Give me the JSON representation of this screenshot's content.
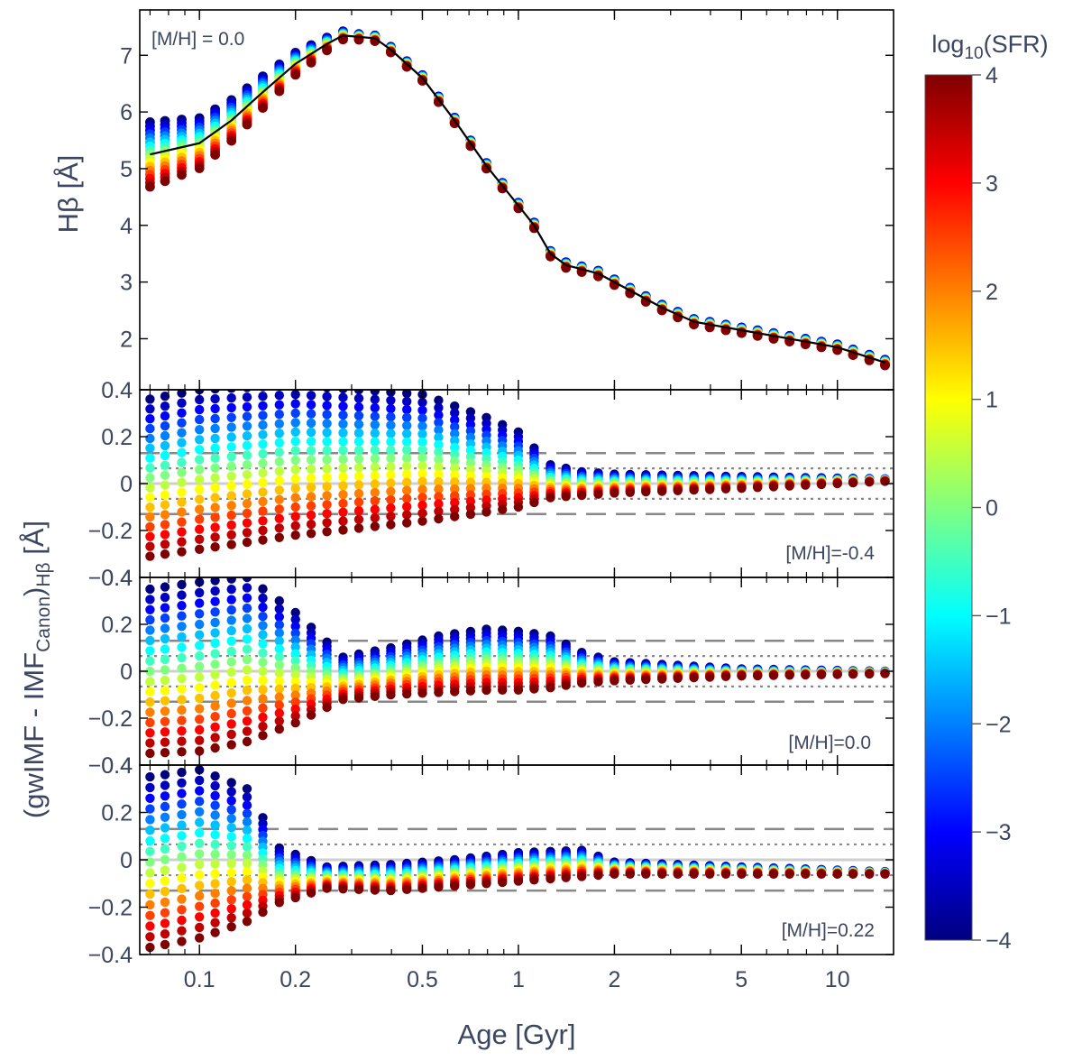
{
  "chart_data": {
    "type": "scatter",
    "x_axis": {
      "label": "Age [Gyr]",
      "scale": "log",
      "xlim": [
        0.065,
        15
      ],
      "tick_values": [
        0.1,
        0.2,
        0.5,
        1,
        2,
        5,
        10
      ],
      "tick_labels": [
        "0.1",
        "0.2",
        "0.5",
        "1",
        "2",
        "5",
        "10"
      ]
    },
    "shared_ylabel": {
      "main": "(gwIMF - IMF",
      "sub": "Canon",
      "after": ")",
      "sub2": "Hβ",
      "unit": "[Å]"
    },
    "colorbar": {
      "title_main": "log",
      "title_sub": "10",
      "title_rest": "(SFR)",
      "range": [
        -4,
        4
      ],
      "tick_values": [
        4,
        3,
        2,
        1,
        0,
        -1,
        -2,
        -3,
        -4
      ],
      "tick_labels": [
        "4",
        "3",
        "2",
        "1",
        "0",
        "−1",
        "−2",
        "−3",
        "−4"
      ],
      "colormap": "jet",
      "colormap_stops": [
        "#00007f",
        "#0000ff",
        "#0080ff",
        "#00ffff",
        "#80ff80",
        "#ffff00",
        "#ff8000",
        "#ff0000",
        "#7f0000"
      ]
    },
    "sfr_levels": [
      -4,
      -3.5,
      -3,
      -2.5,
      -2,
      -1.5,
      -1,
      -0.5,
      0,
      0.5,
      1,
      1.5,
      2,
      2.5,
      3,
      3.5,
      4
    ],
    "ages_gyr": [
      0.07,
      0.078,
      0.088,
      0.1,
      0.112,
      0.126,
      0.141,
      0.158,
      0.178,
      0.2,
      0.224,
      0.251,
      0.282,
      0.316,
      0.355,
      0.398,
      0.447,
      0.5,
      0.562,
      0.631,
      0.708,
      0.794,
      0.891,
      1.0,
      1.12,
      1.26,
      1.41,
      1.58,
      1.78,
      2.0,
      2.24,
      2.51,
      2.82,
      3.16,
      3.55,
      3.98,
      4.47,
      5.01,
      5.62,
      6.31,
      7.08,
      7.94,
      8.91,
      10.0,
      11.2,
      12.6,
      14.1
    ],
    "panels": [
      {
        "name": "hbeta",
        "annotation": "[M/H] = 0.0",
        "ylabel_main": "Hβ",
        "ylabel_unit": "[Å]",
        "ylim": [
          1.1,
          7.8
        ],
        "tick_values": [
          2,
          3,
          4,
          5,
          6,
          7
        ],
        "tick_labels": [
          "2",
          "3",
          "4",
          "5",
          "6",
          "7"
        ],
        "canonical_ages": [
          0.07,
          0.1,
          0.126,
          0.158,
          0.2,
          0.251,
          0.282,
          0.355,
          0.398,
          0.5,
          0.631,
          0.794,
          1.0,
          1.12,
          1.26,
          1.41,
          1.78,
          2.24,
          2.82,
          3.55,
          5.01,
          7.08,
          10.0,
          14.1
        ],
        "canonical_values": [
          5.25,
          5.45,
          5.85,
          6.35,
          6.85,
          7.2,
          7.35,
          7.3,
          7.1,
          6.6,
          5.85,
          5.05,
          4.35,
          4.0,
          3.5,
          3.3,
          3.15,
          2.85,
          2.55,
          2.3,
          2.15,
          2.0,
          1.85,
          1.58
        ],
        "spread_young": 0.8
      },
      {
        "name": "mh-m04",
        "annotation": "[M/H]=-0.4",
        "ylim": [
          -0.4,
          0.4
        ],
        "tick_values": [
          0.4,
          0.2,
          0,
          -0.2,
          -0.4
        ],
        "tick_labels": [
          "0.4",
          "0.2",
          "0",
          "−0.2",
          "−0.4"
        ],
        "envelope_ages": [
          0.07,
          0.1,
          0.2,
          0.5,
          0.8,
          1.0,
          1.26,
          1.58,
          2.0,
          5.0,
          14.1
        ],
        "envelope_top": [
          0.36,
          0.4,
          0.42,
          0.38,
          0.28,
          0.22,
          0.08,
          0.05,
          0.04,
          0.03,
          0.02
        ],
        "envelope_bottom": [
          -0.31,
          -0.28,
          -0.22,
          -0.16,
          -0.12,
          -0.1,
          -0.06,
          -0.05,
          -0.04,
          -0.02,
          0.01
        ],
        "guides_dashed": [
          0.13,
          -0.13
        ],
        "guides_dotted": [
          0.065,
          -0.065
        ]
      },
      {
        "name": "mh-00",
        "annotation": "[M/H]=0.0",
        "ylim": [
          -0.4,
          0.4
        ],
        "tick_values": [
          0.4,
          0.2,
          0,
          -0.2,
          -0.4
        ],
        "tick_labels": [
          "0.4",
          "0.2",
          "0",
          "−0.2",
          "−0.4"
        ],
        "envelope_ages": [
          0.07,
          0.1,
          0.141,
          0.2,
          0.282,
          0.4,
          0.562,
          0.8,
          1.0,
          1.26,
          1.58,
          2.0,
          5.0,
          14.1
        ],
        "envelope_top": [
          0.35,
          0.38,
          0.4,
          0.25,
          0.06,
          0.1,
          0.15,
          0.18,
          0.17,
          0.15,
          0.08,
          0.04,
          0.01,
          0.0
        ],
        "envelope_bottom": [
          -0.35,
          -0.34,
          -0.3,
          -0.22,
          -0.12,
          -0.1,
          -0.09,
          -0.08,
          -0.08,
          -0.07,
          -0.05,
          -0.04,
          -0.02,
          -0.01
        ],
        "guides_dashed": [
          0.13,
          -0.13
        ],
        "guides_dotted": [
          0.065,
          -0.065
        ]
      },
      {
        "name": "mh-022",
        "annotation": "[M/H]=0.22",
        "ylim": [
          -0.4,
          0.4
        ],
        "tick_values": [
          0.4,
          0.2,
          0,
          -0.2,
          -0.4
        ],
        "tick_labels": [
          "0.4",
          "0.2",
          "0",
          "−0.2",
          "−0.4"
        ],
        "envelope_ages": [
          0.07,
          0.1,
          0.141,
          0.178,
          0.251,
          0.4,
          0.631,
          1.0,
          1.58,
          2.0,
          5.0,
          14.1
        ],
        "envelope_top": [
          0.35,
          0.38,
          0.3,
          0.05,
          -0.03,
          -0.02,
          0.0,
          0.03,
          0.04,
          -0.01,
          -0.03,
          -0.05
        ],
        "envelope_bottom": [
          -0.37,
          -0.33,
          -0.26,
          -0.18,
          -0.12,
          -0.13,
          -0.11,
          -0.09,
          -0.07,
          -0.06,
          -0.06,
          -0.06
        ],
        "guides_dashed": [
          0.13,
          -0.13
        ],
        "guides_dotted": [
          0.065,
          -0.065
        ]
      }
    ]
  }
}
